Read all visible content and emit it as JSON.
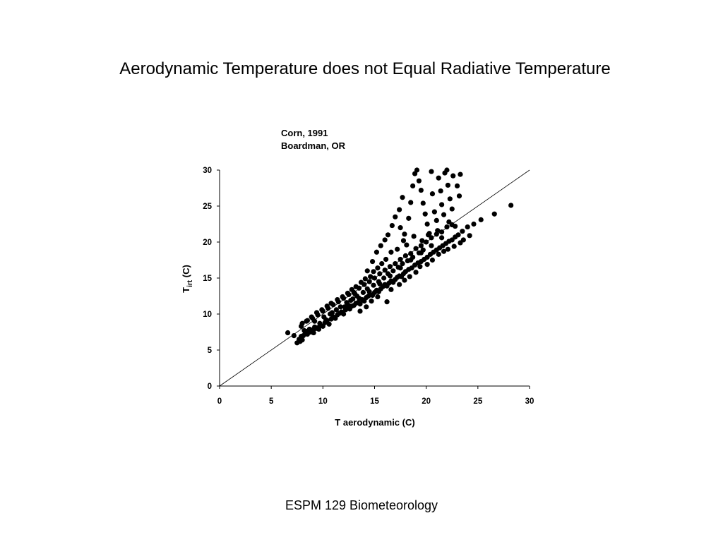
{
  "slide": {
    "title": "Aerodynamic Temperature does not Equal Radiative Temperature",
    "footer": "ESPM 129 Biometeorology"
  },
  "chart_data": {
    "type": "scatter",
    "annotation_lines": [
      "Corn, 1991",
      "Boardman, OR"
    ],
    "xlabel": "T aerodynamic (C)",
    "ylabel": {
      "main": "T",
      "subscript": "irt",
      "suffix": " (C)"
    },
    "xlim": [
      0,
      30
    ],
    "ylim": [
      0,
      30
    ],
    "xticks": [
      0,
      5,
      10,
      15,
      20,
      25,
      30
    ],
    "yticks": [
      0,
      5,
      10,
      15,
      20,
      25,
      30
    ],
    "reference_line": "1:1",
    "grid": false,
    "marker_color": "#000000",
    "points": [
      [
        6.6,
        7.4
      ],
      [
        7.2,
        7.0
      ],
      [
        7.5,
        6.0
      ],
      [
        7.7,
        6.5
      ],
      [
        7.9,
        6.9
      ],
      [
        8.1,
        7.0
      ],
      [
        8.3,
        7.3
      ],
      [
        8.0,
        6.4
      ],
      [
        7.8,
        6.2
      ],
      [
        8.5,
        7.2
      ],
      [
        8.6,
        7.6
      ],
      [
        8.8,
        7.5
      ],
      [
        9.0,
        7.8
      ],
      [
        9.1,
        7.4
      ],
      [
        9.3,
        8.0
      ],
      [
        9.5,
        8.1
      ],
      [
        9.6,
        7.9
      ],
      [
        9.8,
        8.4
      ],
      [
        10.0,
        8.3
      ],
      [
        10.2,
        8.8
      ],
      [
        10.4,
        9.1
      ],
      [
        10.6,
        8.6
      ],
      [
        10.8,
        9.3
      ],
      [
        11.0,
        9.6
      ],
      [
        11.2,
        9.4
      ],
      [
        11.4,
        9.9
      ],
      [
        11.6,
        10.1
      ],
      [
        11.8,
        10.3
      ],
      [
        12.0,
        10.0
      ],
      [
        12.2,
        10.6
      ],
      [
        12.4,
        10.9
      ],
      [
        12.6,
        10.7
      ],
      [
        12.8,
        11.1
      ],
      [
        13.0,
        11.2
      ],
      [
        13.2,
        11.5
      ],
      [
        13.4,
        11.6
      ],
      [
        13.6,
        11.4
      ],
      [
        13.8,
        12.0
      ],
      [
        14.0,
        11.8
      ],
      [
        14.2,
        12.3
      ],
      [
        14.4,
        12.5
      ],
      [
        14.6,
        12.7
      ],
      [
        14.8,
        12.6
      ],
      [
        15.0,
        13.0
      ],
      [
        15.2,
        13.3
      ],
      [
        15.4,
        13.1
      ],
      [
        15.6,
        13.5
      ],
      [
        15.8,
        13.8
      ],
      [
        16.0,
        14.1
      ],
      [
        16.2,
        13.9
      ],
      [
        16.4,
        14.3
      ],
      [
        16.6,
        14.6
      ],
      [
        16.8,
        14.4
      ],
      [
        17.0,
        14.8
      ],
      [
        17.2,
        15.1
      ],
      [
        17.4,
        15.3
      ],
      [
        17.6,
        15.2
      ],
      [
        17.8,
        15.6
      ],
      [
        18.0,
        15.9
      ],
      [
        18.3,
        16.2
      ],
      [
        18.6,
        16.4
      ],
      [
        18.9,
        16.8
      ],
      [
        19.2,
        17.1
      ],
      [
        19.5,
        17.3
      ],
      [
        19.8,
        17.6
      ],
      [
        20.1,
        17.9
      ],
      [
        20.4,
        18.3
      ],
      [
        20.7,
        18.6
      ],
      [
        21.0,
        18.9
      ],
      [
        21.3,
        19.2
      ],
      [
        21.6,
        19.5
      ],
      [
        21.9,
        19.8
      ],
      [
        22.2,
        20.1
      ],
      [
        22.5,
        20.3
      ],
      [
        22.8,
        20.7
      ],
      [
        23.1,
        21.0
      ],
      [
        23.5,
        21.5
      ],
      [
        24.0,
        22.1
      ],
      [
        24.6,
        22.5
      ],
      [
        25.3,
        23.1
      ],
      [
        26.6,
        23.9
      ],
      [
        28.2,
        25.1
      ],
      [
        8.0,
        8.7
      ],
      [
        8.5,
        9.1
      ],
      [
        9.0,
        9.4
      ],
      [
        9.5,
        9.9
      ],
      [
        10.0,
        10.4
      ],
      [
        10.5,
        10.8
      ],
      [
        11.0,
        11.3
      ],
      [
        11.5,
        11.7
      ],
      [
        12.0,
        12.2
      ],
      [
        12.5,
        12.7
      ],
      [
        13.0,
        13.0
      ],
      [
        13.5,
        13.6
      ],
      [
        14.0,
        14.1
      ],
      [
        14.5,
        14.5
      ],
      [
        15.0,
        15.0
      ],
      [
        15.5,
        15.6
      ],
      [
        16.0,
        16.1
      ],
      [
        16.5,
        16.6
      ],
      [
        17.0,
        17.0
      ],
      [
        17.5,
        17.6
      ],
      [
        18.0,
        18.1
      ],
      [
        18.5,
        18.4
      ],
      [
        19.0,
        19.1
      ],
      [
        19.5,
        19.5
      ],
      [
        20.0,
        20.0
      ],
      [
        20.5,
        20.6
      ],
      [
        21.0,
        21.1
      ],
      [
        21.5,
        21.4
      ],
      [
        22.0,
        22.1
      ],
      [
        22.5,
        22.4
      ],
      [
        9.2,
        9.0
      ],
      [
        10.1,
        9.6
      ],
      [
        10.9,
        10.2
      ],
      [
        11.7,
        11.0
      ],
      [
        12.3,
        11.6
      ],
      [
        12.9,
        12.1
      ],
      [
        13.3,
        12.5
      ],
      [
        13.9,
        13.0
      ],
      [
        14.3,
        13.5
      ],
      [
        14.9,
        14.0
      ],
      [
        15.4,
        14.5
      ],
      [
        15.9,
        15.0
      ],
      [
        16.3,
        15.6
      ],
      [
        16.8,
        16.0
      ],
      [
        17.3,
        16.5
      ],
      [
        17.7,
        17.0
      ],
      [
        18.2,
        17.4
      ],
      [
        18.7,
        17.9
      ],
      [
        19.3,
        18.5
      ],
      [
        19.7,
        18.9
      ],
      [
        14.3,
        16.0
      ],
      [
        14.8,
        17.3
      ],
      [
        15.2,
        18.6
      ],
      [
        15.6,
        19.5
      ],
      [
        16.0,
        20.3
      ],
      [
        16.3,
        21.0
      ],
      [
        16.7,
        22.3
      ],
      [
        17.0,
        23.5
      ],
      [
        17.4,
        24.5
      ],
      [
        17.7,
        26.2
      ],
      [
        17.5,
        22.0
      ],
      [
        17.9,
        21.1
      ],
      [
        18.1,
        19.6
      ],
      [
        18.3,
        23.3
      ],
      [
        18.5,
        25.5
      ],
      [
        18.7,
        27.8
      ],
      [
        18.9,
        29.5
      ],
      [
        19.1,
        30.0
      ],
      [
        19.3,
        28.5
      ],
      [
        19.5,
        27.2
      ],
      [
        19.7,
        25.4
      ],
      [
        19.9,
        23.9
      ],
      [
        20.1,
        22.5
      ],
      [
        20.3,
        21.2
      ],
      [
        20.5,
        29.8
      ],
      [
        20.6,
        26.7
      ],
      [
        20.8,
        24.2
      ],
      [
        21.0,
        23.0
      ],
      [
        21.2,
        28.9
      ],
      [
        21.4,
        27.1
      ],
      [
        21.5,
        25.2
      ],
      [
        21.7,
        23.8
      ],
      [
        21.8,
        29.6
      ],
      [
        22.0,
        30.0
      ],
      [
        22.1,
        27.9
      ],
      [
        22.3,
        26.0
      ],
      [
        22.5,
        24.6
      ],
      [
        22.6,
        29.2
      ],
      [
        22.8,
        22.2
      ],
      [
        23.0,
        27.8
      ],
      [
        23.2,
        26.4
      ],
      [
        23.3,
        29.4
      ],
      [
        22.2,
        22.8
      ],
      [
        21.1,
        21.6
      ],
      [
        20.2,
        21.0
      ],
      [
        19.6,
        20.2
      ],
      [
        18.8,
        20.8
      ],
      [
        17.8,
        20.2
      ],
      [
        17.2,
        19.0
      ],
      [
        16.6,
        18.6
      ],
      [
        16.1,
        17.6
      ],
      [
        15.7,
        17.0
      ],
      [
        15.3,
        16.4
      ],
      [
        14.9,
        15.9
      ],
      [
        14.6,
        15.2
      ],
      [
        14.1,
        14.9
      ],
      [
        13.7,
        14.4
      ],
      [
        13.2,
        13.8
      ],
      [
        12.8,
        13.4
      ],
      [
        12.4,
        12.9
      ],
      [
        11.9,
        12.4
      ],
      [
        11.4,
        12.0
      ],
      [
        10.8,
        11.5
      ],
      [
        10.4,
        11.1
      ],
      [
        9.9,
        10.6
      ],
      [
        9.4,
        10.2
      ],
      [
        8.9,
        9.6
      ],
      [
        8.4,
        9.0
      ],
      [
        7.9,
        8.3
      ],
      [
        8.2,
        7.7
      ],
      [
        13.6,
        10.4
      ],
      [
        14.2,
        11.0
      ],
      [
        14.7,
        11.8
      ],
      [
        15.3,
        12.4
      ],
      [
        16.2,
        11.7
      ],
      [
        16.6,
        13.4
      ],
      [
        17.4,
        14.1
      ],
      [
        17.9,
        14.7
      ],
      [
        18.4,
        15.2
      ],
      [
        19.0,
        15.8
      ],
      [
        19.4,
        16.6
      ],
      [
        20.1,
        16.9
      ],
      [
        20.6,
        17.5
      ],
      [
        21.2,
        18.3
      ],
      [
        21.7,
        18.7
      ],
      [
        22.1,
        19.0
      ],
      [
        22.7,
        19.4
      ],
      [
        23.3,
        19.9
      ],
      [
        23.6,
        20.3
      ],
      [
        24.2,
        20.9
      ],
      [
        12.1,
        11.0
      ],
      [
        12.7,
        11.9
      ],
      [
        13.1,
        12.8
      ],
      [
        11.3,
        10.6
      ],
      [
        10.7,
        10.0
      ],
      [
        10.3,
        9.2
      ],
      [
        9.7,
        8.7
      ],
      [
        9.2,
        8.2
      ],
      [
        8.7,
        7.9
      ],
      [
        8.4,
        7.6
      ],
      [
        12.5,
        11.2
      ],
      [
        13.5,
        12.2
      ],
      [
        14.5,
        13.1
      ],
      [
        15.5,
        14.2
      ],
      [
        16.5,
        15.3
      ],
      [
        17.5,
        16.4
      ],
      [
        18.5,
        17.5
      ],
      [
        19.5,
        18.5
      ],
      [
        20.5,
        19.5
      ],
      [
        21.5,
        20.6
      ]
    ]
  }
}
